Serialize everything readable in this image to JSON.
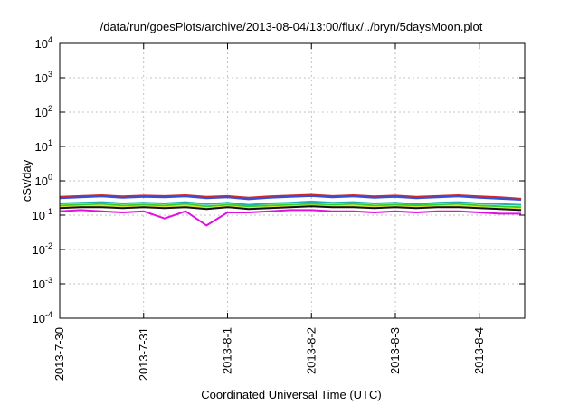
{
  "chart_data": {
    "type": "line",
    "title": "/data/run/goesPlots/archive/2013-08-04/13:00/flux/../bryn/5daysMoon.plot",
    "xlabel": "Coordinated Universal Time (UTC)",
    "ylabel": "cSv/day",
    "y_scale": "log",
    "ylim": [
      0.0001,
      10000
    ],
    "xlim": [
      "2013-07-30T00:00",
      "2013-08-04T13:00"
    ],
    "grid": true,
    "legend": "none",
    "y_ticks": [
      {
        "base": "10",
        "exp": "-4"
      },
      {
        "base": "10",
        "exp": "-3"
      },
      {
        "base": "10",
        "exp": "-2"
      },
      {
        "base": "10",
        "exp": "-1"
      },
      {
        "base": "10",
        "exp": "0"
      },
      {
        "base": "10",
        "exp": "1"
      },
      {
        "base": "10",
        "exp": "2"
      },
      {
        "base": "10",
        "exp": "3"
      },
      {
        "base": "10",
        "exp": "4"
      }
    ],
    "x_ticks": [
      {
        "label": "2013-7-30",
        "date": "2013-07-30T00:00"
      },
      {
        "label": "2013-7-31",
        "date": "2013-07-31T00:00"
      },
      {
        "label": "2013-8-1",
        "date": "2013-08-01T00:00"
      },
      {
        "label": "2013-8-2",
        "date": "2013-08-02T00:00"
      },
      {
        "label": "2013-8-3",
        "date": "2013-08-03T00:00"
      },
      {
        "label": "2013-8-4",
        "date": "2013-08-04T00:00"
      }
    ],
    "x": [
      "2013-07-30T00:00",
      "2013-07-30T06:00",
      "2013-07-30T12:00",
      "2013-07-30T18:00",
      "2013-07-31T00:00",
      "2013-07-31T06:00",
      "2013-07-31T12:00",
      "2013-07-31T18:00",
      "2013-08-01T00:00",
      "2013-08-01T06:00",
      "2013-08-01T12:00",
      "2013-08-01T18:00",
      "2013-08-02T00:00",
      "2013-08-02T06:00",
      "2013-08-02T12:00",
      "2013-08-02T18:00",
      "2013-08-03T00:00",
      "2013-08-03T06:00",
      "2013-08-03T12:00",
      "2013-08-03T18:00",
      "2013-08-04T00:00",
      "2013-08-04T06:00",
      "2013-08-04T12:00"
    ],
    "series": [
      {
        "color": "#d02828",
        "values": [
          0.34,
          0.36,
          0.38,
          0.35,
          0.37,
          0.36,
          0.38,
          0.34,
          0.36,
          0.32,
          0.35,
          0.37,
          0.39,
          0.36,
          0.38,
          0.35,
          0.37,
          0.34,
          0.36,
          0.38,
          0.35,
          0.33,
          0.3
        ]
      },
      {
        "color": "#3050e0",
        "values": [
          0.31,
          0.33,
          0.35,
          0.32,
          0.34,
          0.33,
          0.35,
          0.31,
          0.33,
          0.29,
          0.32,
          0.34,
          0.36,
          0.33,
          0.35,
          0.32,
          0.34,
          0.31,
          0.33,
          0.35,
          0.32,
          0.3,
          0.28
        ]
      },
      {
        "color": "#20b0b0",
        "values": [
          0.22,
          0.23,
          0.24,
          0.22,
          0.23,
          0.22,
          0.24,
          0.21,
          0.23,
          0.2,
          0.22,
          0.23,
          0.25,
          0.23,
          0.24,
          0.22,
          0.23,
          0.21,
          0.23,
          0.24,
          0.22,
          0.21,
          0.2
        ]
      },
      {
        "color": "#30d030",
        "values": [
          0.19,
          0.2,
          0.21,
          0.19,
          0.2,
          0.19,
          0.21,
          0.18,
          0.2,
          0.18,
          0.19,
          0.2,
          0.21,
          0.2,
          0.21,
          0.19,
          0.2,
          0.19,
          0.2,
          0.21,
          0.19,
          0.18,
          0.17
        ]
      },
      {
        "color": "#e0e030",
        "values": [
          0.17,
          0.18,
          0.19,
          0.17,
          0.18,
          0.17,
          0.19,
          0.16,
          0.18,
          0.16,
          0.17,
          0.18,
          0.19,
          0.18,
          0.19,
          0.17,
          0.18,
          0.17,
          0.18,
          0.19,
          0.17,
          0.16,
          0.15
        ]
      },
      {
        "color": "#101010",
        "values": [
          0.16,
          0.17,
          0.17,
          0.16,
          0.17,
          0.16,
          0.17,
          0.15,
          0.17,
          0.15,
          0.16,
          0.17,
          0.18,
          0.17,
          0.17,
          0.16,
          0.17,
          0.16,
          0.17,
          0.17,
          0.16,
          0.15,
          0.14
        ]
      },
      {
        "color": "#e010e0",
        "values": [
          0.13,
          0.14,
          0.13,
          0.12,
          0.13,
          0.08,
          0.13,
          0.05,
          0.12,
          0.12,
          0.13,
          0.14,
          0.14,
          0.13,
          0.13,
          0.12,
          0.13,
          0.12,
          0.13,
          0.13,
          0.12,
          0.11,
          0.11
        ]
      }
    ]
  }
}
